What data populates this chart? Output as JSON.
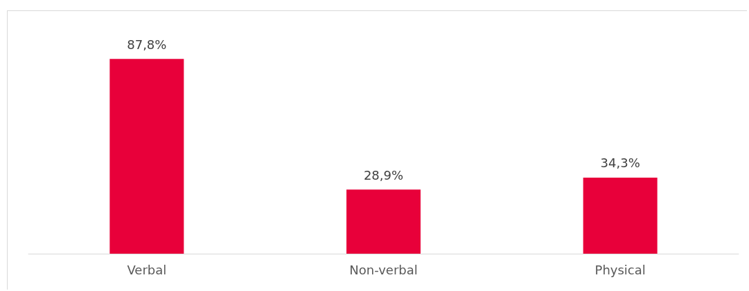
{
  "chart_data": {
    "type": "bar",
    "categories": [
      "Verbal",
      "Non-verbal",
      "Physical"
    ],
    "values": [
      87.8,
      28.9,
      34.3
    ],
    "color": "#e8003a",
    "value_labels": [
      "87,8%",
      "28,9%",
      "34,3%"
    ]
  }
}
